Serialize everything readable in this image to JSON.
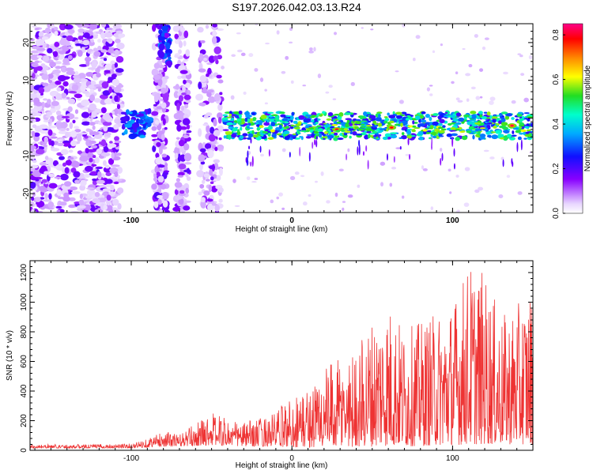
{
  "figure": {
    "title": "S197.2026.042.03.13.R24"
  },
  "chart_data": [
    {
      "type": "heatmap",
      "xlabel": "Height of straight line (km)",
      "ylabel": "Frequency (Hz)",
      "xlim": [
        -163,
        150
      ],
      "ylim": [
        -25,
        25
      ],
      "x_ticks": [
        -100,
        0,
        100
      ],
      "y_ticks": [
        -20,
        -10,
        0,
        10,
        20
      ],
      "colorbar": {
        "label": "Normalized spectral amplitude",
        "range": [
          0.0,
          0.85
        ],
        "ticks": [
          "0.0",
          "0.2",
          "0.4",
          "0.6",
          "0.8"
        ],
        "colormap": [
          "#e8d6ff",
          "#8800ff",
          "#1010ff",
          "#00aaff",
          "#00ffcc",
          "#22dd22",
          "#ffff00",
          "#ff8800",
          "#ff0000",
          "#ff0088"
        ]
      },
      "features": [
        {
          "note": "broadband noise, scattered",
          "x_range": [
            -163,
            -106
          ],
          "freq_range": [
            -25,
            25
          ],
          "amplitude": 0.06
        },
        {
          "note": "blob",
          "x": -90,
          "freq": -2,
          "amplitude": 0.25
        },
        {
          "note": "blob",
          "x": -80,
          "freq": 19,
          "amplitude": 0.3
        },
        {
          "note": "ridge near 0 Hz",
          "x_range": [
            -42,
            150
          ],
          "freq": -2,
          "amplitude": 0.45
        },
        {
          "note": "peak",
          "x": 28,
          "freq": -3,
          "amplitude": 0.8
        },
        {
          "note": "peak",
          "x": 62,
          "freq": -2.5,
          "amplitude": 0.78
        },
        {
          "note": "peak",
          "x": 137,
          "freq": -2,
          "amplitude": 0.82
        }
      ]
    },
    {
      "type": "line",
      "xlabel": "Height of straight line (km)",
      "ylabel": "SNR (10 * v/v)",
      "xlim": [
        -163,
        150
      ],
      "ylim": [
        0,
        1280
      ],
      "x_ticks": [
        -100,
        0,
        100
      ],
      "y_ticks": [
        0,
        200,
        400,
        600,
        800,
        1000,
        1200
      ],
      "color": "#ee3333",
      "envelope": {
        "x": [
          -163,
          -130,
          -100,
          -90,
          -80,
          -70,
          -60,
          -50,
          -40,
          -30,
          -20,
          -10,
          0,
          10,
          20,
          30,
          40,
          50,
          60,
          70,
          80,
          90,
          100,
          110,
          120,
          130,
          140,
          150
        ],
        "peak": [
          40,
          40,
          45,
          80,
          130,
          110,
          180,
          260,
          210,
          190,
          220,
          260,
          380,
          420,
          560,
          620,
          700,
          900,
          1010,
          820,
          870,
          930,
          1000,
          1270,
          1200,
          900,
          980,
          1100
        ],
        "base": [
          15,
          15,
          15,
          20,
          25,
          25,
          30,
          35,
          30,
          25,
          25,
          25,
          20,
          20,
          20,
          20,
          25,
          25,
          30,
          25,
          30,
          35,
          35,
          40,
          40,
          40,
          40,
          40
        ]
      }
    }
  ]
}
